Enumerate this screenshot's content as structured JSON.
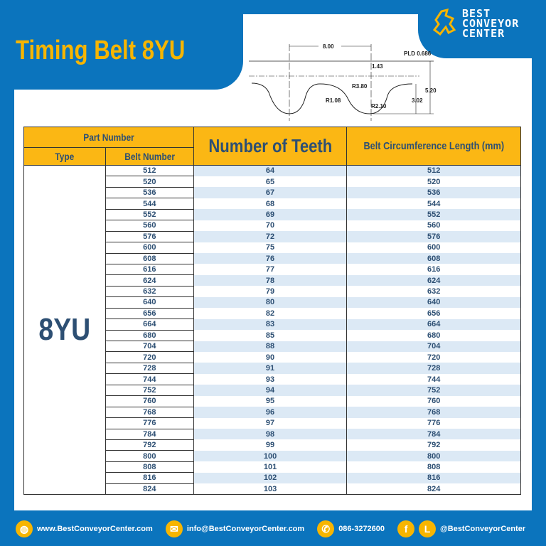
{
  "title": "Timing Belt 8YU",
  "logo": {
    "line1": "BEST",
    "line2": "CONVEYOR",
    "line3": "CENTER"
  },
  "diagram": {
    "pitch": "8.00",
    "pld": "PLD 0.686",
    "offset": "1.43",
    "r1": "R3.80",
    "r2": "R1.08",
    "r3": "R2.10",
    "height": "5.20",
    "tooth": "3.02"
  },
  "table": {
    "headers": {
      "part_number": "Part Number",
      "type": "Type",
      "belt_number": "Belt Number",
      "teeth": "Number of Teeth",
      "length": "Belt Circumference Length (mm)"
    },
    "type": "8YU",
    "rows": [
      [
        "512",
        "64",
        "512"
      ],
      [
        "520",
        "65",
        "520"
      ],
      [
        "536",
        "67",
        "536"
      ],
      [
        "544",
        "68",
        "544"
      ],
      [
        "552",
        "69",
        "552"
      ],
      [
        "560",
        "70",
        "560"
      ],
      [
        "576",
        "72",
        "576"
      ],
      [
        "600",
        "75",
        "600"
      ],
      [
        "608",
        "76",
        "608"
      ],
      [
        "616",
        "77",
        "616"
      ],
      [
        "624",
        "78",
        "624"
      ],
      [
        "632",
        "79",
        "632"
      ],
      [
        "640",
        "80",
        "640"
      ],
      [
        "656",
        "82",
        "656"
      ],
      [
        "664",
        "83",
        "664"
      ],
      [
        "680",
        "85",
        "680"
      ],
      [
        "704",
        "88",
        "704"
      ],
      [
        "720",
        "90",
        "720"
      ],
      [
        "728",
        "91",
        "728"
      ],
      [
        "744",
        "93",
        "744"
      ],
      [
        "752",
        "94",
        "752"
      ],
      [
        "760",
        "95",
        "760"
      ],
      [
        "768",
        "96",
        "768"
      ],
      [
        "776",
        "97",
        "776"
      ],
      [
        "784",
        "98",
        "784"
      ],
      [
        "792",
        "99",
        "792"
      ],
      [
        "800",
        "100",
        "800"
      ],
      [
        "808",
        "101",
        "808"
      ],
      [
        "816",
        "102",
        "816"
      ],
      [
        "824",
        "103",
        "824"
      ]
    ]
  },
  "footer": {
    "website": "www.BestConveyorCenter.com",
    "email": "info@BestConveyorCenter.com",
    "phone": "086-3272600",
    "social": "@BestConveyorCenter",
    "line_letter": "L",
    "fb_letter": "f"
  },
  "colors": {
    "brand_blue": "#0b74bd",
    "accent_yellow": "#f7b500",
    "text_navy": "#2d4f73",
    "stripe": "#dce9f5"
  }
}
